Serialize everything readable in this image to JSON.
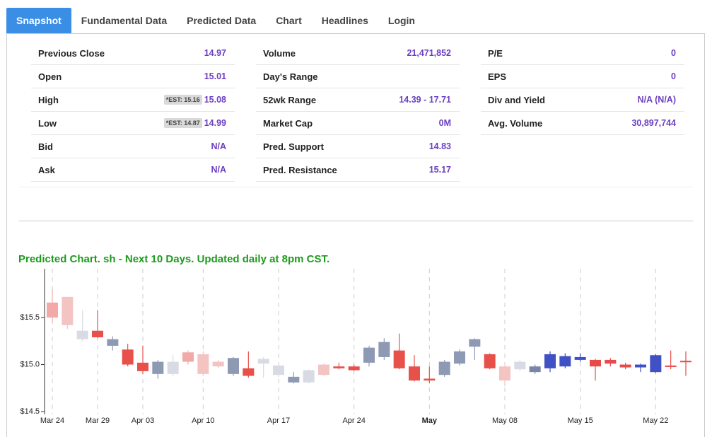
{
  "tabs": [
    "Snapshot",
    "Fundamental Data",
    "Predicted Data",
    "Chart",
    "Headlines",
    "Login"
  ],
  "active_tab": 0,
  "stats": [
    [
      {
        "label": "Previous Close",
        "value": "14.97"
      },
      {
        "label": "Open",
        "value": "15.01"
      },
      {
        "label": "High",
        "value": "15.08",
        "est": "*EST: 15.16"
      },
      {
        "label": "Low",
        "value": "14.99",
        "est": "*EST: 14.87"
      },
      {
        "label": "Bid",
        "value": "N/A"
      },
      {
        "label": "Ask",
        "value": "N/A"
      }
    ],
    [
      {
        "label": "Volume",
        "value": "21,471,852"
      },
      {
        "label": "Day's Range",
        "value": ""
      },
      {
        "label": "52wk Range",
        "value": "14.39 - 17.71"
      },
      {
        "label": "Market Cap",
        "value": "0M"
      },
      {
        "label": "Pred. Support",
        "value": "14.83"
      },
      {
        "label": "Pred. Resistance",
        "value": "15.17"
      }
    ],
    [
      {
        "label": "P/E",
        "value": "0"
      },
      {
        "label": "EPS",
        "value": "0"
      },
      {
        "label": "Div and Yield",
        "value": "N/A (N/A)"
      },
      {
        "label": "Avg. Volume",
        "value": "30,897,744"
      }
    ]
  ],
  "chart_data": {
    "type": "candlestick",
    "title": "Predicted Chart. sh - Next 10 Days. Updated daily at 8pm CST.",
    "categories": [
      "Mar 24",
      null,
      null,
      "Mar 29",
      null,
      null,
      "Apr 03",
      null,
      null,
      null,
      "Apr 10",
      null,
      null,
      null,
      null,
      "Apr 17",
      null,
      null,
      null,
      null,
      "Apr 24",
      null,
      null,
      null,
      null,
      "May",
      null,
      null,
      null,
      null,
      "May 08",
      null,
      null,
      null,
      null,
      "May 15",
      null,
      null,
      null,
      null,
      "May 22",
      null,
      null
    ],
    "open": [
      15.66,
      15.72,
      15.36,
      15.36,
      15.27,
      15.16,
      15.02,
      15.03,
      15.03,
      15.13,
      15.11,
      15.03,
      15.07,
      14.96,
      15.06,
      14.99,
      14.87,
      14.94,
      15.0,
      14.98,
      14.98,
      15.18,
      15.24,
      15.15,
      14.98,
      14.85,
      14.89,
      15.01,
      15.19,
      15.11,
      14.98,
      14.95,
      14.92,
      14.96,
      14.98,
      15.05,
      15.05,
      15.05,
      15.0,
      14.97,
      14.92,
      14.99,
      15.04
    ],
    "high": [
      15.8,
      15.72,
      15.58,
      15.58,
      15.3,
      15.22,
      15.2,
      15.05,
      15.1,
      15.15,
      15.14,
      15.05,
      15.08,
      15.14,
      15.08,
      15.0,
      14.92,
      14.95,
      15.01,
      15.02,
      15.0,
      15.2,
      15.28,
      15.33,
      15.1,
      14.98,
      15.05,
      15.16,
      15.28,
      15.12,
      14.99,
      15.05,
      15.0,
      15.14,
      15.12,
      15.12,
      15.06,
      15.07,
      15.02,
      15.01,
      15.11,
      15.15,
      15.14
    ],
    "low": [
      15.45,
      15.38,
      15.25,
      15.28,
      15.15,
      14.98,
      14.9,
      14.85,
      14.88,
      15.0,
      14.88,
      14.96,
      14.88,
      14.86,
      14.86,
      14.87,
      14.8,
      14.8,
      14.88,
      14.95,
      14.93,
      14.98,
      15.05,
      14.95,
      14.82,
      14.8,
      14.87,
      14.99,
      15.05,
      14.95,
      14.77,
      14.93,
      14.9,
      14.92,
      14.96,
      15.03,
      14.83,
      14.98,
      14.95,
      14.92,
      14.91,
      14.95,
      14.88
    ],
    "close": [
      15.5,
      15.42,
      15.27,
      15.29,
      15.2,
      15.0,
      14.93,
      14.9,
      14.9,
      15.03,
      14.9,
      14.98,
      14.9,
      14.88,
      15.01,
      14.89,
      14.81,
      14.81,
      14.89,
      14.96,
      14.94,
      15.02,
      15.08,
      14.96,
      14.83,
      14.83,
      15.03,
      15.14,
      15.27,
      14.96,
      14.83,
      15.03,
      14.98,
      15.11,
      15.09,
      15.08,
      14.98,
      15.01,
      14.97,
      15.0,
      15.1,
      14.98,
      15.03
    ],
    "colors": [
      "#f2aaa8",
      "#f4c4c3",
      "#d8dbe3",
      "#e8504a",
      "#8e99b3",
      "#e8504a",
      "#e8504a",
      "#8e99b3",
      "#d8dbe3",
      "#f2aaa8",
      "#f4c4c3",
      "#f4c4c3",
      "#8e99b3",
      "#e8504a",
      "#d8dbe3",
      "#d8dbe3",
      "#8e99b3",
      "#d8dbe3",
      "#f4c4c3",
      "#e8504a",
      "#e8504a",
      "#8e99b3",
      "#8e99b3",
      "#e8504a",
      "#e8504a",
      "#e8504a",
      "#8e99b3",
      "#8e99b3",
      "#8e99b3",
      "#e8504a",
      "#f4c4c3",
      "#d8dbe3",
      "#7a86a8",
      "#3f51c4",
      "#3f51c4",
      "#3f51c4",
      "#e84a4a",
      "#e84a4a",
      "#e84a4a",
      "#3f51c4",
      "#3f51c4",
      "#e84a4a",
      "#e84a4a"
    ],
    "ylim": [
      14.47,
      16.02
    ],
    "yticks": [
      {
        "value": 14.5,
        "label": "$14.5"
      },
      {
        "value": 15.0,
        "label": "$15.0"
      },
      {
        "value": 15.5,
        "label": "$15.5"
      }
    ]
  }
}
